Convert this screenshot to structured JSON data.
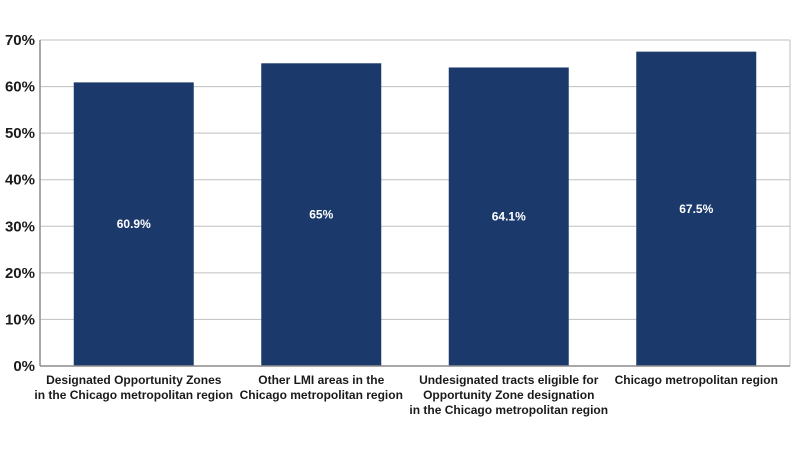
{
  "chart_data": {
    "type": "bar",
    "categories": [
      [
        "Designated Opportunity Zones",
        "in the Chicago metropolitan region"
      ],
      [
        "Other LMI areas in the",
        "Chicago metropolitan region"
      ],
      [
        "Undesignated tracts eligible for",
        "Opportunity Zone designation",
        "in the Chicago metropolitan region"
      ],
      [
        "Chicago metropolitan region"
      ]
    ],
    "values": [
      60.9,
      65.0,
      64.1,
      67.5
    ],
    "data_labels": [
      "60.9%",
      "65%",
      "64.1%",
      "67.5%"
    ],
    "yticks": [
      0,
      10,
      20,
      30,
      40,
      50,
      60,
      70
    ],
    "ytick_labels": [
      "0%",
      "10%",
      "20%",
      "30%",
      "40%",
      "50%",
      "60%",
      "70%"
    ],
    "ylim": [
      0,
      70
    ],
    "grid": true,
    "bar_color": "#1b3a6b",
    "grid_color": "#bfbfbf"
  }
}
